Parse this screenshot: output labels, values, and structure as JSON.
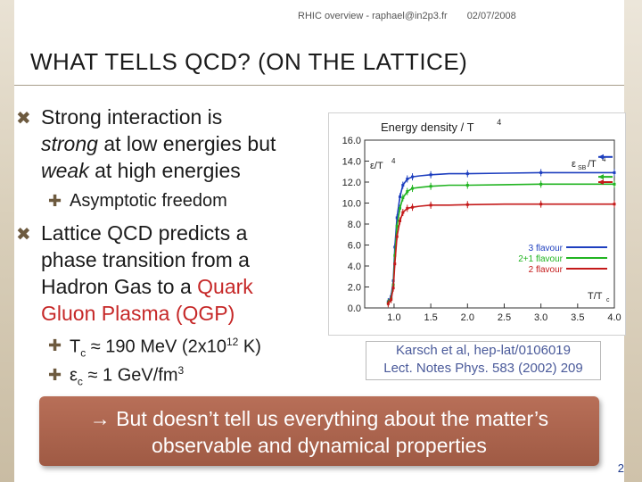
{
  "header": {
    "talk": "RHIC overview - raphael@in2p3.fr",
    "date": "02/07/2008"
  },
  "title": "WHAT TELLS QCD? (ON THE LATTICE)",
  "bullets": {
    "b1_part1": "Strong interaction is",
    "b1_part2": "strong",
    "b1_part3": " at low energies but",
    "b1_part4": "weak",
    "b1_part5": " at high energies",
    "sub1": "Asymptotic freedom",
    "b2_line1": "Lattice QCD predicts a",
    "b2_line2": "phase transition from a",
    "b2_line3": "Hadron Gas to a ",
    "b2_red1": "Quark",
    "b2_red2": "Gluon Plasma (QGP)",
    "tc_sym": "T",
    "tc_sub": "c",
    "tc_val": " ≈ 190 MeV (2x10",
    "tc_exp": "12",
    "tc_tail": " K)",
    "ec_sym": "ε",
    "ec_sub": "c",
    "ec_val": " ≈ 1 GeV/fm",
    "ec_exp": "3"
  },
  "icons": {
    "main_bullet": "cross-mark-icon",
    "sub_bullet": "plus-icon"
  },
  "citation": {
    "line1": "Karsch et al, hep-lat/0106019",
    "line2": "Lect. Notes Phys. 583 (2002) 209"
  },
  "callout": {
    "line1": "→ But doesn’t tell us everything about the matter’s",
    "line2": "observable and dynamical properties"
  },
  "page_number": "2",
  "chart_data": {
    "type": "line",
    "title": "Energy density / T",
    "title_sup": "4",
    "left_label": "ε/T",
    "left_label_sup": "4",
    "right_label": "ε",
    "right_label_sub": "SB",
    "right_label_tail": "/T",
    "right_label_sup": "4",
    "xlabel": "T/T",
    "xlabel_sub": "c",
    "xlim": [
      0.6,
      4.0
    ],
    "ylim": [
      0.0,
      16.0
    ],
    "xticks": [
      "1.0",
      "1.5",
      "2.0",
      "2.5",
      "3.0",
      "3.5",
      "4.0"
    ],
    "yticks": [
      "0.0",
      "2.0",
      "4.0",
      "6.0",
      "8.0",
      "10.0",
      "12.0",
      "14.0",
      "16.0"
    ],
    "legend_position": "bottom-right",
    "series": [
      {
        "name": "3 flavour",
        "color": "#1e3fbf",
        "x": [
          0.92,
          0.96,
          0.99,
          1.01,
          1.04,
          1.08,
          1.12,
          1.18,
          1.25,
          1.35,
          1.5,
          1.75,
          2.0,
          2.5,
          3.0,
          3.5,
          4.0
        ],
        "y": [
          0.6,
          1.1,
          2.6,
          5.8,
          8.6,
          10.6,
          11.7,
          12.3,
          12.5,
          12.6,
          12.7,
          12.8,
          12.8,
          12.85,
          12.9,
          12.9,
          12.9
        ],
        "sb_limit": 14.4
      },
      {
        "name": "2+1 flavour",
        "color": "#22b422",
        "x": [
          0.92,
          0.96,
          0.99,
          1.01,
          1.04,
          1.08,
          1.12,
          1.18,
          1.25,
          1.35,
          1.5,
          1.75,
          2.0,
          2.5,
          3.0,
          3.5,
          4.0
        ],
        "y": [
          0.5,
          0.9,
          2.2,
          5.0,
          7.8,
          9.5,
          10.5,
          11.1,
          11.4,
          11.5,
          11.6,
          11.7,
          11.7,
          11.75,
          11.8,
          11.8,
          11.8
        ],
        "sb_limit": 12.5
      },
      {
        "name": "2 flavour",
        "color": "#c41a1a",
        "x": [
          0.92,
          0.96,
          0.99,
          1.01,
          1.04,
          1.08,
          1.12,
          1.18,
          1.25,
          1.35,
          1.5,
          1.75,
          2.0,
          2.5,
          3.0,
          3.5,
          4.0
        ],
        "y": [
          0.4,
          0.8,
          1.9,
          4.2,
          6.8,
          8.3,
          9.1,
          9.5,
          9.6,
          9.7,
          9.8,
          9.8,
          9.85,
          9.9,
          9.9,
          9.9,
          9.9
        ],
        "sb_limit": 12.0
      }
    ]
  }
}
